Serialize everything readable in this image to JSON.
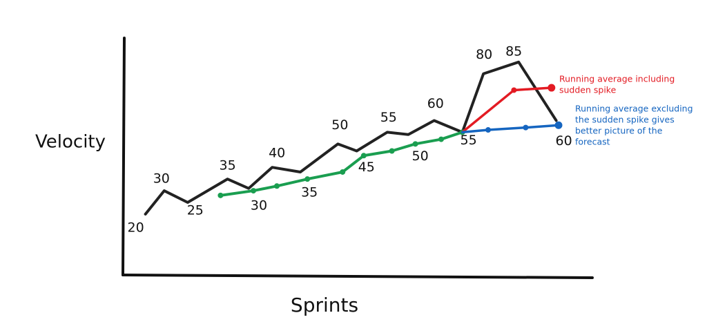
{
  "chart_data": {
    "type": "line",
    "xlabel": "Sprints",
    "ylabel": "Velocity",
    "xlim": [
      0,
      20
    ],
    "ylim": [
      -6,
      100
    ],
    "series": [
      {
        "name": "Velocity",
        "color": "#222222",
        "x": [
          0.9,
          1.7,
          2.7,
          4.4,
          5.3,
          6.3,
          7.5,
          9.1,
          9.9,
          11.2,
          12.1,
          13.2,
          14.4,
          15.3,
          16.8,
          18.4
        ],
        "values": [
          20,
          30,
          25,
          35,
          31,
          40,
          38,
          50,
          47,
          55,
          54,
          60,
          55,
          80,
          85,
          60
        ],
        "value_labels": [
          20,
          30,
          25,
          35,
          null,
          40,
          null,
          50,
          null,
          55,
          null,
          60,
          55,
          80,
          85,
          60
        ]
      },
      {
        "name": "Running average",
        "color": "#1a9e50",
        "x": [
          4.1,
          5.5,
          6.5,
          7.8,
          9.3,
          10.2,
          11.4,
          12.4,
          13.5,
          14.4
        ],
        "values": [
          28,
          30,
          32,
          35,
          38,
          45,
          47,
          50,
          52,
          55
        ],
        "value_labels": [
          null,
          30,
          null,
          35,
          null,
          45,
          null,
          50,
          null,
          null
        ]
      },
      {
        "name": "Running average including sudden spike",
        "color": "#e31b23",
        "x": [
          14.4,
          16.6,
          18.2
        ],
        "values": [
          55,
          73,
          74
        ]
      },
      {
        "name": "Running average excluding the sudden spike gives better picture of the forecast",
        "color": "#1565c0",
        "x": [
          14.4,
          15.5,
          17.1,
          18.5
        ],
        "values": [
          55,
          56,
          57,
          58
        ]
      }
    ],
    "annotations": [
      {
        "lines": [
          "Running average including",
          "sudden spike"
        ],
        "color": "#e31b23"
      },
      {
        "lines": [
          "Running average excluding",
          "the sudden spike gives",
          "better picture of the",
          "forecast"
        ],
        "color": "#1565c0"
      }
    ]
  }
}
